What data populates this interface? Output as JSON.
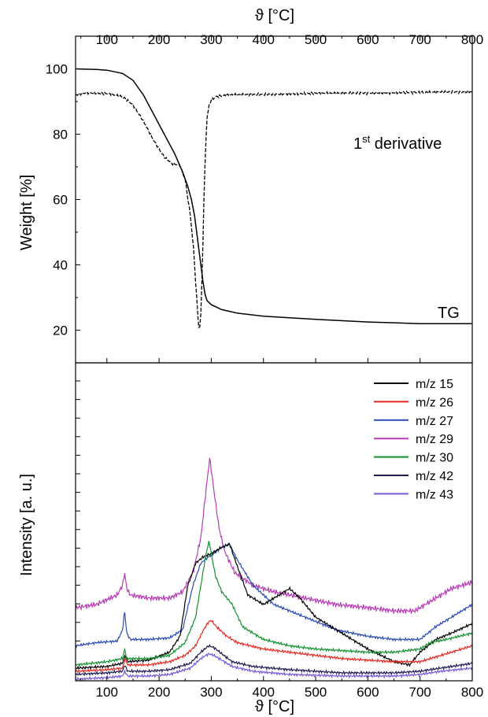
{
  "chart_data": [
    {
      "type": "line",
      "panel": "top",
      "ylabel": "Weight [%]",
      "top_xlabel": "ϑ [°C]",
      "xlim": [
        40,
        800
      ],
      "ylim": [
        10,
        110
      ],
      "xticks": [
        100,
        200,
        300,
        400,
        500,
        600,
        700,
        800
      ],
      "yticks": [
        20,
        40,
        60,
        80,
        100
      ],
      "annotations": {
        "derivative_base": "1",
        "derivative_sup": "st",
        "derivative_rest": " derivative",
        "tg": "TG"
      },
      "series": [
        {
          "name": "TG",
          "style": "solid",
          "color": "#000000",
          "x": [
            40,
            80,
            100,
            130,
            150,
            170,
            190,
            210,
            230,
            245,
            255,
            262,
            268,
            272,
            276,
            280,
            284,
            288,
            292,
            300,
            320,
            350,
            400,
            500,
            600,
            700,
            800
          ],
          "y": [
            100,
            99.8,
            99.6,
            98.6,
            96.5,
            92,
            86,
            80,
            74,
            68.5,
            64,
            60,
            55,
            50,
            45,
            40,
            35,
            31,
            29,
            27.8,
            26.3,
            25.2,
            24.3,
            23.3,
            22.5,
            22,
            22
          ]
        },
        {
          "name": "1st derivative",
          "style": "dashed",
          "color": "#000000",
          "x": [
            40,
            60,
            100,
            130,
            150,
            170,
            190,
            210,
            225,
            240,
            250,
            260,
            266,
            270,
            274,
            277,
            280,
            283,
            286,
            289,
            292,
            296,
            300,
            310,
            330,
            400,
            500,
            600,
            700,
            800
          ],
          "y": [
            92,
            92.7,
            92.4,
            91.5,
            89,
            84,
            78,
            73,
            71,
            70.5,
            66,
            55,
            45,
            35,
            25,
            19,
            25,
            40,
            60,
            76,
            85,
            89,
            90.5,
            91.5,
            92,
            92.2,
            92.5,
            92.6,
            92.8,
            93
          ]
        }
      ]
    },
    {
      "type": "line",
      "panel": "bottom",
      "ylabel": "Intensity [a. u.]",
      "xlabel": "ϑ [°C]",
      "xlim": [
        40,
        800
      ],
      "ylim": [
        0,
        100
      ],
      "xticks": [
        100,
        200,
        300,
        400,
        500,
        600,
        700,
        800
      ],
      "legend_position": "top-right",
      "series": [
        {
          "name": "m/z 15",
          "color": "#000000",
          "x": [
            40,
            100,
            130,
            135,
            140,
            180,
            220,
            240,
            255,
            270,
            285,
            300,
            320,
            335,
            350,
            370,
            400,
            430,
            450,
            470,
            500,
            550,
            600,
            650,
            680,
            700,
            730,
            760,
            800
          ],
          "y": [
            4,
            4.5,
            5.5,
            8,
            6,
            6.5,
            9,
            14,
            30,
            37,
            39,
            40,
            42,
            43,
            36,
            27,
            24,
            27,
            29,
            26,
            20,
            15,
            10,
            6,
            5,
            9,
            13,
            15,
            18
          ]
        },
        {
          "name": "m/z 26",
          "color": "#e8271e",
          "x": [
            40,
            100,
            130,
            135,
            140,
            180,
            220,
            250,
            270,
            285,
            295,
            300,
            310,
            330,
            350,
            400,
            450,
            500,
            550,
            600,
            650,
            700,
            730,
            760,
            800
          ],
          "y": [
            3,
            3.5,
            4,
            7,
            5,
            5,
            6,
            8,
            11,
            16,
            18.5,
            19,
            17,
            14,
            12,
            10,
            9,
            8,
            7,
            6.5,
            6,
            6,
            7.5,
            9,
            11
          ]
        },
        {
          "name": "m/z 27",
          "color": "#2a4ab5",
          "x": [
            40,
            80,
            120,
            130,
            134,
            138,
            145,
            180,
            220,
            245,
            265,
            280,
            295,
            305,
            320,
            335,
            350,
            380,
            420,
            480,
            540,
            600,
            650,
            700,
            730,
            760,
            800
          ],
          "y": [
            11,
            12,
            12.5,
            16,
            22,
            15,
            13,
            13,
            13.5,
            16,
            30,
            37,
            39,
            40,
            42,
            43,
            38,
            30,
            24,
            20,
            16,
            14,
            13,
            13,
            17,
            20,
            24
          ]
        },
        {
          "name": "m/z 29",
          "color": "#b83bb5",
          "x": [
            40,
            80,
            120,
            130,
            134,
            138,
            145,
            180,
            220,
            245,
            265,
            280,
            290,
            297,
            305,
            315,
            325,
            345,
            380,
            420,
            480,
            540,
            600,
            650,
            690,
            720,
            760,
            800
          ],
          "y": [
            23,
            24,
            27,
            30,
            34,
            29,
            27,
            26,
            26,
            28,
            34,
            45,
            60,
            70,
            60,
            48,
            41,
            34,
            30,
            28,
            26,
            24,
            23,
            22,
            22,
            25,
            29,
            31
          ]
        },
        {
          "name": "m/z 30",
          "color": "#11922f",
          "x": [
            40,
            100,
            130,
            134,
            138,
            145,
            180,
            220,
            250,
            270,
            283,
            290,
            296,
            300,
            308,
            320,
            340,
            360,
            400,
            450,
            500,
            550,
            600,
            650,
            700,
            720,
            750,
            800
          ],
          "y": [
            5,
            6,
            7,
            10,
            7,
            7,
            7,
            8,
            12,
            20,
            33,
            40,
            44,
            40,
            33,
            28,
            24,
            17,
            13,
            11,
            10,
            9.5,
            9,
            9,
            10,
            12,
            13,
            15
          ]
        },
        {
          "name": "m/z 42",
          "color": "#1d1b52",
          "x": [
            40,
            100,
            130,
            134,
            140,
            180,
            220,
            260,
            280,
            295,
            305,
            320,
            340,
            380,
            450,
            550,
            650,
            700,
            740,
            800
          ],
          "y": [
            2,
            2.5,
            3,
            5,
            3,
            3,
            3.5,
            5.5,
            9,
            11,
            10.5,
            8.5,
            6,
            4.5,
            3.5,
            2.5,
            2.5,
            3,
            4,
            5.5
          ]
        },
        {
          "name": "m/z 43",
          "color": "#7757d6",
          "x": [
            40,
            100,
            130,
            134,
            140,
            180,
            220,
            260,
            280,
            295,
            305,
            320,
            340,
            380,
            450,
            550,
            650,
            700,
            740,
            800
          ],
          "y": [
            0.5,
            1,
            1.5,
            3,
            1.5,
            1.5,
            2,
            4,
            7,
            8.5,
            8,
            6.5,
            4.5,
            3,
            2,
            1.5,
            1.5,
            2,
            3,
            4
          ]
        }
      ]
    }
  ]
}
